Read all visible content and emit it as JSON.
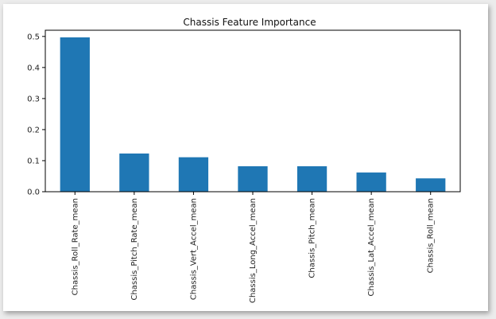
{
  "chart_data": {
    "type": "bar",
    "title": "Chassis Feature Importance",
    "xlabel": "",
    "ylabel": "",
    "categories": [
      "Chassis_Roll_Rate_mean",
      "Chassis_Pitch_Rate_mean",
      "Chassis_Vert_Accel_mean",
      "Chassis_Long_Accel_mean",
      "Chassis_Pitch_mean",
      "Chassis_Lat_Accel_mean",
      "Chassis_Roll_mean"
    ],
    "values": [
      0.497,
      0.123,
      0.111,
      0.082,
      0.082,
      0.062,
      0.043
    ],
    "ylim": [
      0.0,
      0.52
    ],
    "yticks": [
      0.0,
      0.1,
      0.2,
      0.3,
      0.4,
      0.5
    ],
    "ytick_labels": [
      "0.0",
      "0.1",
      "0.2",
      "0.3",
      "0.4",
      "0.5"
    ],
    "grid": false,
    "bar_color": "#1f77b4"
  }
}
